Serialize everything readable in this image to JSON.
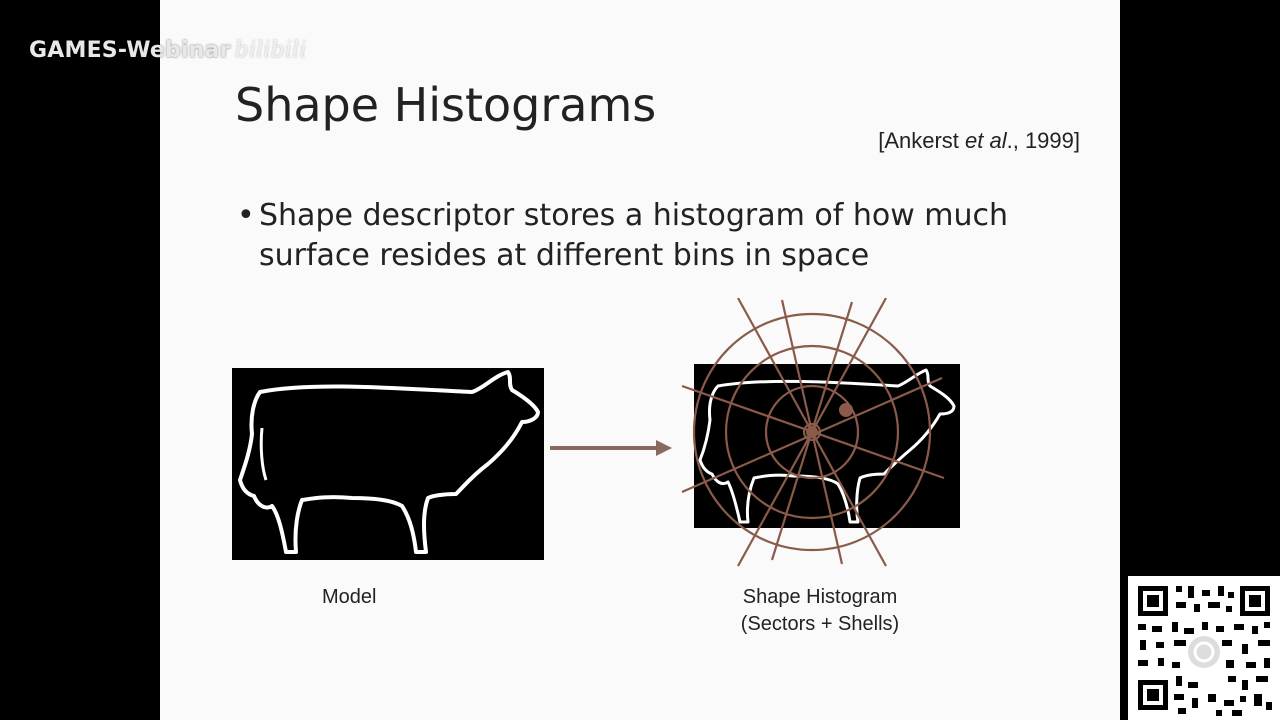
{
  "watermark": {
    "brand": "GAMES-Webinar",
    "site_logo_text": "bilibili"
  },
  "slide": {
    "title": "Shape Histograms",
    "citation_prefix": "[Ankerst ",
    "citation_italic": "et al",
    "citation_suffix": "., 1999]",
    "bullet_marker": "•",
    "bullet_text": "Shape descriptor stores a histogram of how much surface resides at different bins in space",
    "caption_model": "Model",
    "caption_hist_line1": "Shape Histogram",
    "caption_hist_line2": "(Sectors + Shells)"
  },
  "colors": {
    "slide_bg": "#fafafa",
    "outer_bg": "#000000",
    "overlay_lines": "#8a5a4a",
    "arrow": "#8a6a5e",
    "cow_outline": "#ffffff"
  },
  "icons": {
    "qr": "qr-code-icon"
  }
}
